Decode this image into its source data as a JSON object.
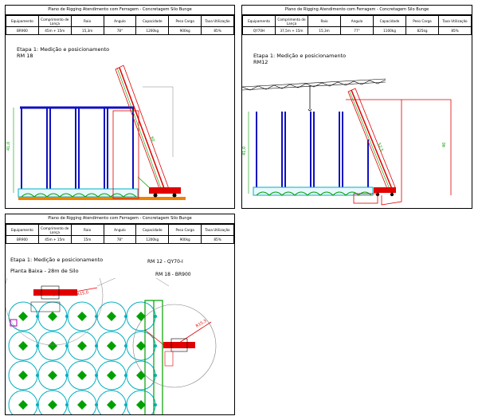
{
  "sheets": {
    "top_left": {
      "title": "Plano de Rigging Atendimento com Ferragem - Concretagem Silo Bunge",
      "headers": [
        "Equipamento",
        "Comprimento de Lança",
        "Raio",
        "Angulo",
        "Capacidade",
        "Peso Carga",
        "Taxa Utilização"
      ],
      "values": [
        "BR900",
        "45m + 15m",
        "15,3m",
        "78°",
        "1200kg",
        "900kg",
        "85%"
      ],
      "stage": "Etapa 1: Medição e posicionamento",
      "crane_tag": "RM 18",
      "dim_height": "41,0",
      "dim_boom": "60"
    },
    "top_right": {
      "title": "Plano de Rigging Atendimento com Ferragem - Concretagem Silo Bunge",
      "headers": [
        "Equipamento",
        "Comprimento de Lança",
        "Raio",
        "Angulo",
        "Capacidade",
        "Peso Carga",
        "Taxa Utilização"
      ],
      "values": [
        "QY70H",
        "37,5m + 15m",
        "15,3m",
        "77°",
        "1100kg",
        "825kg",
        "85%"
      ],
      "stage": "Etapa 1: Medição e posicionamento",
      "crane_tag": "RM12",
      "dim_height": "41,0",
      "dim_boom": "52,5",
      "dim_right": "40"
    },
    "bottom": {
      "title": "Plano de Rigging Atendimento com Ferragem - Concretagem Silo Bunge",
      "headers": [
        "Equipamento",
        "Comprimento de Lança",
        "Raio",
        "Angulo",
        "Capacidade",
        "Peso Carga",
        "Taxa Utilização"
      ],
      "values": [
        "BR900",
        "45m + 15m",
        "15m",
        "78°",
        "1200kg",
        "900kg",
        "85%"
      ],
      "stage": "Etapa 1: Medição e posicionamento",
      "subtitle": "Planta Baixa - 28m de Silo",
      "callout_1": "RM 12 - QY70-I",
      "callout_2": "RM 18 - BR900",
      "radius_1": "R15,0",
      "radius_2": "R15,3"
    }
  },
  "colors": {
    "silo_blue": "#1010c0",
    "crane_red": "#e00000",
    "ground_orange": "#f08000",
    "green": "#00a000",
    "cyan": "#00b0c0",
    "gray": "#808080",
    "magenta": "#b000b0"
  }
}
